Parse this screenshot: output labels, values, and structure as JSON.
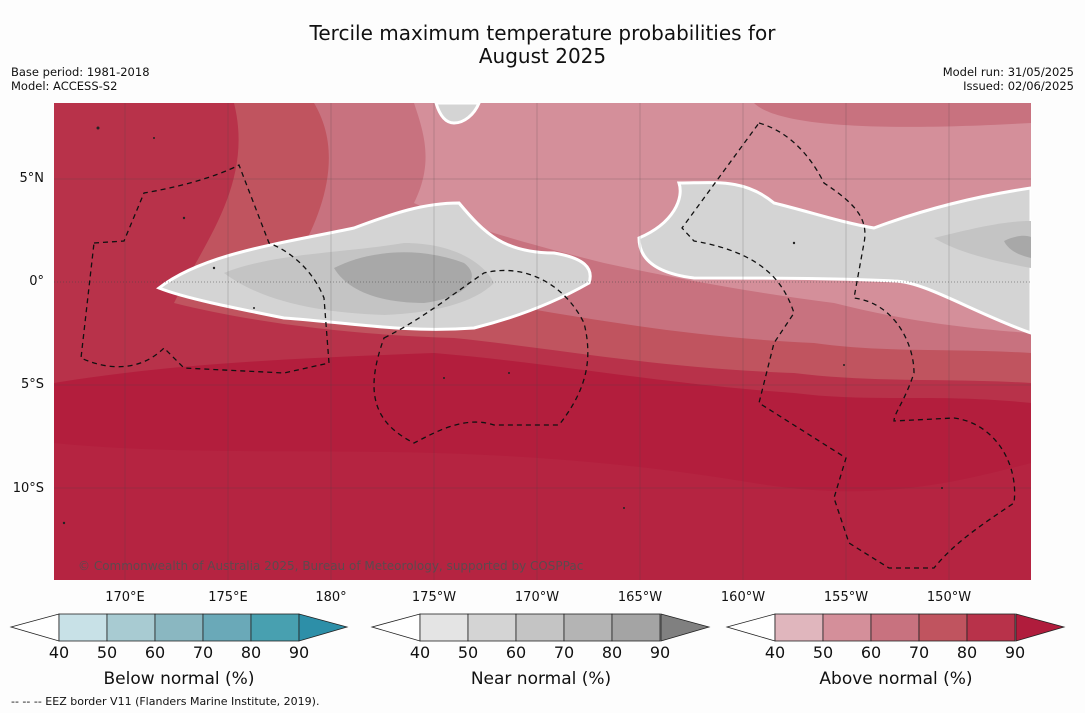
{
  "title_line1": "Tercile maximum temperature probabilities for",
  "title_line2": "August 2025",
  "meta_left": {
    "base_period": "Base period: 1981-2018",
    "model": "Model: ACCESS-S2"
  },
  "meta_right": {
    "model_run": "Model run: 31/05/2025",
    "issued": "Issued: 02/06/2025"
  },
  "lat_ticks": [
    "5°N",
    "0°",
    "5°S",
    "10°S"
  ],
  "lon_ticks": [
    "170°E",
    "175°E",
    "180°",
    "175°W",
    "170°W",
    "165°W",
    "160°W",
    "155°W",
    "150°W"
  ],
  "credit": "© Commonwealth of Australia 2025, Bureau of Meteorology, supported by COSPPac",
  "colorbars": [
    {
      "label": "Below normal (%)",
      "ticks": [
        "40",
        "50",
        "60",
        "70",
        "80",
        "90"
      ],
      "colors": [
        "#c8e1e7",
        "#a8cbd2",
        "#8ab7c1",
        "#6aa9b8",
        "#48a0b0",
        "#2d8fa8"
      ]
    },
    {
      "label": "Near normal (%)",
      "ticks": [
        "40",
        "50",
        "60",
        "70",
        "80",
        "90"
      ],
      "colors": [
        "#e4e4e4",
        "#d4d4d4",
        "#c4c4c4",
        "#b4b4b4",
        "#a4a4a4",
        "#808080"
      ]
    },
    {
      "label": "Above normal (%)",
      "ticks": [
        "40",
        "50",
        "60",
        "70",
        "80",
        "90"
      ],
      "colors": [
        "#e0b6bd",
        "#d48f9a",
        "#c8727f",
        "#c0545f",
        "#b8324a",
        "#b01c3c"
      ]
    }
  ],
  "footnote": "--  --  -- EEZ border V11 (Flanders Marine Institute, 2019)."
}
